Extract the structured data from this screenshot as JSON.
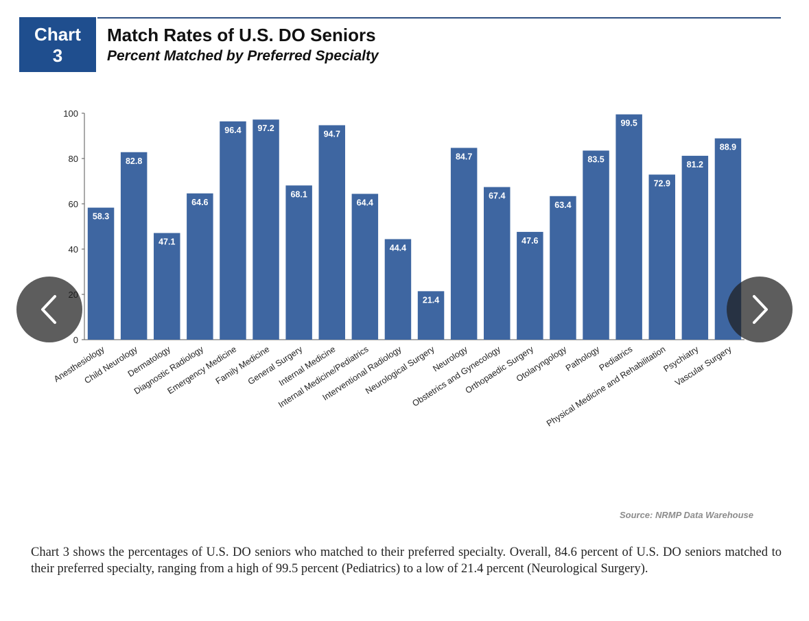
{
  "badge": {
    "line1": "Chart",
    "line2": "3"
  },
  "header": {
    "title": "Match Rates of U.S. DO Seniors",
    "subtitle": "Percent Matched by Preferred Specialty"
  },
  "chart_data": {
    "type": "bar",
    "title": "Match Rates of U.S. DO Seniors",
    "subtitle": "Percent Matched by Preferred Specialty",
    "xlabel": "",
    "ylabel": "",
    "ylim": [
      0,
      100
    ],
    "yticks": [
      0,
      20,
      40,
      60,
      80,
      100
    ],
    "grid": false,
    "bar_color": "#3e66a1",
    "categories": [
      "Anesthesiology",
      "Child Neurology",
      "Dermatology",
      "Diagnostic Radiology",
      "Emergency Medicine",
      "Family Medicine",
      "General Surgery",
      "Internal Medicine",
      "Internal Medicine/Pediatrics",
      "Interventional Radiology",
      "Neurological Surgery",
      "Neurology",
      "Obstetrics and Gynecology",
      "Orthopaedic Surgery",
      "Otolaryngology",
      "Pathology",
      "Pediatrics",
      "Physical Medicine and Rehabilitation",
      "Psychiatry",
      "Vascular Surgery"
    ],
    "values": [
      58.3,
      82.8,
      47.1,
      64.6,
      96.4,
      97.2,
      68.1,
      94.7,
      64.4,
      44.4,
      21.4,
      84.7,
      67.4,
      47.6,
      63.4,
      83.5,
      99.5,
      72.9,
      81.2,
      88.9
    ],
    "value_labels": [
      "58.3",
      "82.8",
      "47.1",
      "64.6",
      "96.4",
      "97.2",
      "68.1",
      "94.7",
      "64.4",
      "44.4",
      "21.4",
      "84.7",
      "67.4",
      "47.6",
      "63.4",
      "83.5",
      "99.5",
      "72.9",
      "81.2",
      "88.9"
    ]
  },
  "source": "Source: NRMP Data Warehouse",
  "caption": "Chart 3 shows the percentages of U.S. DO seniors who matched to their preferred specialty. Overall, 84.6 percent of U.S. DO seniors matched to their preferred specialty, ranging from a high of 99.5 percent (Pediatrics) to a low of 21.4 percent (Neurological Surgery).",
  "nav": {
    "prev_icon": "chevron-left-icon",
    "next_icon": "chevron-right-icon"
  }
}
